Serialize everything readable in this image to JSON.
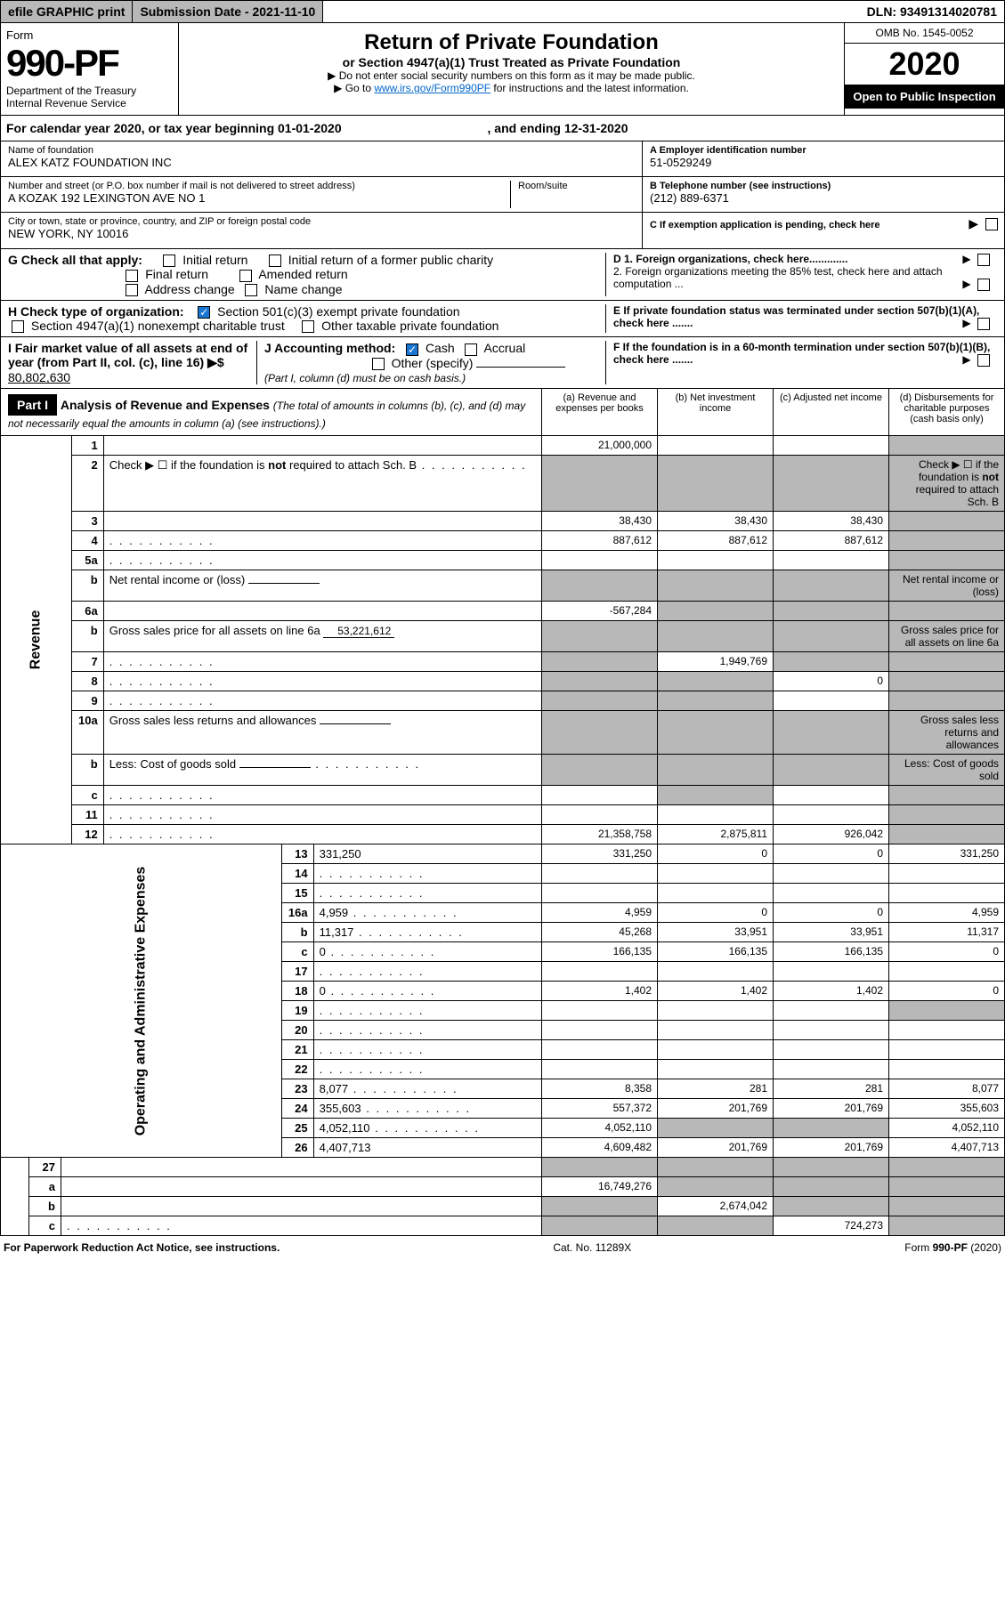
{
  "topbar": {
    "efile": "efile GRAPHIC print",
    "submission": "Submission Date - 2021-11-10",
    "dln": "DLN: 93491314020781"
  },
  "header": {
    "form_word": "Form",
    "form_no": "990-PF",
    "dept1": "Department of the Treasury",
    "dept2": "Internal Revenue Service",
    "title": "Return of Private Foundation",
    "subtitle": "or Section 4947(a)(1) Trust Treated as Private Foundation",
    "instr1": "▶ Do not enter social security numbers on this form as it may be made public.",
    "instr2a": "▶ Go to ",
    "instr2_link": "www.irs.gov/Form990PF",
    "instr2b": " for instructions and the latest information.",
    "omb": "OMB No. 1545-0052",
    "year": "2020",
    "open": "Open to Public Inspection"
  },
  "cal_year": {
    "text_a": "For calendar year 2020, or tax year beginning 01-01-2020",
    "text_b": ", and ending 12-31-2020"
  },
  "info": {
    "name_label": "Name of foundation",
    "name": "ALEX KATZ FOUNDATION INC",
    "addr_label": "Number and street (or P.O. box number if mail is not delivered to street address)",
    "addr": "A KOZAK 192 LEXINGTON AVE NO 1",
    "room_label": "Room/suite",
    "city_label": "City or town, state or province, country, and ZIP or foreign postal code",
    "city": "NEW YORK, NY  10016",
    "ein_label": "A Employer identification number",
    "ein": "51-0529249",
    "phone_label": "B Telephone number (see instructions)",
    "phone": "(212) 889-6371",
    "c_label": "C If exemption application is pending, check here"
  },
  "checks": {
    "g_label": "G Check all that apply:",
    "g_initial": "Initial return",
    "g_initial_former": "Initial return of a former public charity",
    "g_final": "Final return",
    "g_amended": "Amended return",
    "g_addr": "Address change",
    "g_name": "Name change",
    "h_label": "H Check type of organization:",
    "h_501c3": "Section 501(c)(3) exempt private foundation",
    "h_4947": "Section 4947(a)(1) nonexempt charitable trust",
    "h_other": "Other taxable private foundation",
    "i_label": "I Fair market value of all assets at end of year (from Part II, col. (c), line 16) ▶$ ",
    "i_value": "80,802,630",
    "j_label": "J Accounting method:",
    "j_cash": "Cash",
    "j_accrual": "Accrual",
    "j_other": "Other (specify)",
    "j_note": "(Part I, column (d) must be on cash basis.)",
    "d1": "D 1. Foreign organizations, check here.............",
    "d2": "2. Foreign organizations meeting the 85% test, check here and attach computation ...",
    "e": "E  If private foundation status was terminated under section 507(b)(1)(A), check here .......",
    "f": "F  If the foundation is in a 60-month termination under section 507(b)(1)(B), check here .......",
    "arrow": "▶"
  },
  "part1": {
    "label": "Part I",
    "title": "Analysis of Revenue and Expenses",
    "note": "(The total of amounts in columns (b), (c), and (d) may not necessarily equal the amounts in column (a) (see instructions).)",
    "col_a": "(a)   Revenue and expenses per books",
    "col_b": "(b)   Net investment income",
    "col_c": "(c)   Adjusted net income",
    "col_d": "(d)   Disbursements for charitable purposes (cash basis only)"
  },
  "side_labels": {
    "revenue": "Revenue",
    "expenses": "Operating and Administrative Expenses"
  },
  "rows": [
    {
      "n": "1",
      "d": "",
      "a": "21,000,000",
      "b": "",
      "c": "",
      "d_shade": true
    },
    {
      "n": "2",
      "d": "Check ▶ ☐ if the foundation is <b>not</b> required to attach Sch. B",
      "dots": true,
      "a_shade": true,
      "b_shade": true,
      "c_shade": true,
      "d_shade": true
    },
    {
      "n": "3",
      "d": "",
      "a": "38,430",
      "b": "38,430",
      "c": "38,430",
      "d_shade": true
    },
    {
      "n": "4",
      "d": "",
      "dots": true,
      "a": "887,612",
      "b": "887,612",
      "c": "887,612",
      "d_shade": true
    },
    {
      "n": "5a",
      "d": "",
      "dots": true,
      "a": "",
      "b": "",
      "c": "",
      "d_shade": true
    },
    {
      "n": "b",
      "d": "Net rental income or (loss)",
      "inline": "",
      "a_shade": true,
      "b_shade": true,
      "c_shade": true,
      "d_shade": true
    },
    {
      "n": "6a",
      "d": "",
      "a": "-567,284",
      "b": "",
      "b_shade": true,
      "c": "",
      "c_shade": true,
      "d_shade": true
    },
    {
      "n": "b",
      "d": "Gross sales price for all assets on line 6a",
      "inline": "53,221,612",
      "a_shade": true,
      "b_shade": true,
      "c_shade": true,
      "d_shade": true
    },
    {
      "n": "7",
      "d": "",
      "dots": true,
      "a": "",
      "a_shade": true,
      "b": "1,949,769",
      "c": "",
      "c_shade": true,
      "d_shade": true
    },
    {
      "n": "8",
      "d": "",
      "dots": true,
      "a": "",
      "a_shade": true,
      "b": "",
      "b_shade": true,
      "c": "0",
      "d_shade": true
    },
    {
      "n": "9",
      "d": "",
      "dots": true,
      "a": "",
      "a_shade": true,
      "b": "",
      "b_shade": true,
      "c": "",
      "d_shade": true
    },
    {
      "n": "10a",
      "d": "Gross sales less returns and allowances",
      "inline": "",
      "a_shade": true,
      "b_shade": true,
      "c_shade": true,
      "d_shade": true
    },
    {
      "n": "b",
      "d": "Less: Cost of goods sold",
      "dots": true,
      "inline": "",
      "a_shade": true,
      "b_shade": true,
      "c_shade": true,
      "d_shade": true
    },
    {
      "n": "c",
      "d": "",
      "dots": true,
      "a": "",
      "b": "",
      "b_shade": true,
      "c": "",
      "d_shade": true
    },
    {
      "n": "11",
      "d": "",
      "dots": true,
      "a": "",
      "b": "",
      "c": "",
      "d_shade": true
    },
    {
      "n": "12",
      "d": "",
      "dots": true,
      "a": "21,358,758",
      "b": "2,875,811",
      "c": "926,042",
      "d_shade": true
    }
  ],
  "exp_rows": [
    {
      "n": "13",
      "d": "331,250",
      "a": "331,250",
      "b": "0",
      "c": "0"
    },
    {
      "n": "14",
      "d": "",
      "dots": true,
      "a": "",
      "b": "",
      "c": ""
    },
    {
      "n": "15",
      "d": "",
      "dots": true,
      "a": "",
      "b": "",
      "c": ""
    },
    {
      "n": "16a",
      "d": "4,959",
      "dots": true,
      "a": "4,959",
      "b": "0",
      "c": "0"
    },
    {
      "n": "b",
      "d": "11,317",
      "dots": true,
      "a": "45,268",
      "b": "33,951",
      "c": "33,951"
    },
    {
      "n": "c",
      "d": "0",
      "dots": true,
      "a": "166,135",
      "b": "166,135",
      "c": "166,135"
    },
    {
      "n": "17",
      "d": "",
      "dots": true,
      "a": "",
      "b": "",
      "c": ""
    },
    {
      "n": "18",
      "d": "0",
      "dots": true,
      "a": "1,402",
      "b": "1,402",
      "c": "1,402"
    },
    {
      "n": "19",
      "d": "",
      "dots": true,
      "a": "",
      "b": "",
      "c": "",
      "d_shade": true
    },
    {
      "n": "20",
      "d": "",
      "dots": true,
      "a": "",
      "b": "",
      "c": ""
    },
    {
      "n": "21",
      "d": "",
      "dots": true,
      "a": "",
      "b": "",
      "c": ""
    },
    {
      "n": "22",
      "d": "",
      "dots": true,
      "a": "",
      "b": "",
      "c": ""
    },
    {
      "n": "23",
      "d": "8,077",
      "dots": true,
      "a": "8,358",
      "b": "281",
      "c": "281"
    },
    {
      "n": "24",
      "d": "355,603",
      "dots": true,
      "a": "557,372",
      "b": "201,769",
      "c": "201,769"
    },
    {
      "n": "25",
      "d": "4,052,110",
      "dots": true,
      "a": "4,052,110",
      "b": "",
      "b_shade": true,
      "c": "",
      "c_shade": true
    },
    {
      "n": "26",
      "d": "4,407,713",
      "a": "4,609,482",
      "b": "201,769",
      "c": "201,769"
    }
  ],
  "final_rows": [
    {
      "n": "27",
      "d": "",
      "a": "",
      "a_shade": true,
      "b": "",
      "b_shade": true,
      "c": "",
      "c_shade": true,
      "d_shade": true
    },
    {
      "n": "a",
      "d": "",
      "a": "16,749,276",
      "b": "",
      "b_shade": true,
      "c": "",
      "c_shade": true,
      "d_shade": true
    },
    {
      "n": "b",
      "d": "",
      "a": "",
      "a_shade": true,
      "b": "2,674,042",
      "c": "",
      "c_shade": true,
      "d_shade": true
    },
    {
      "n": "c",
      "d": "",
      "dots": true,
      "a": "",
      "a_shade": true,
      "b": "",
      "b_shade": true,
      "c": "724,273",
      "d_shade": true
    }
  ],
  "footer": {
    "left": "For Paperwork Reduction Act Notice, see instructions.",
    "mid": "Cat. No. 11289X",
    "right": "Form 990-PF (2020)"
  }
}
